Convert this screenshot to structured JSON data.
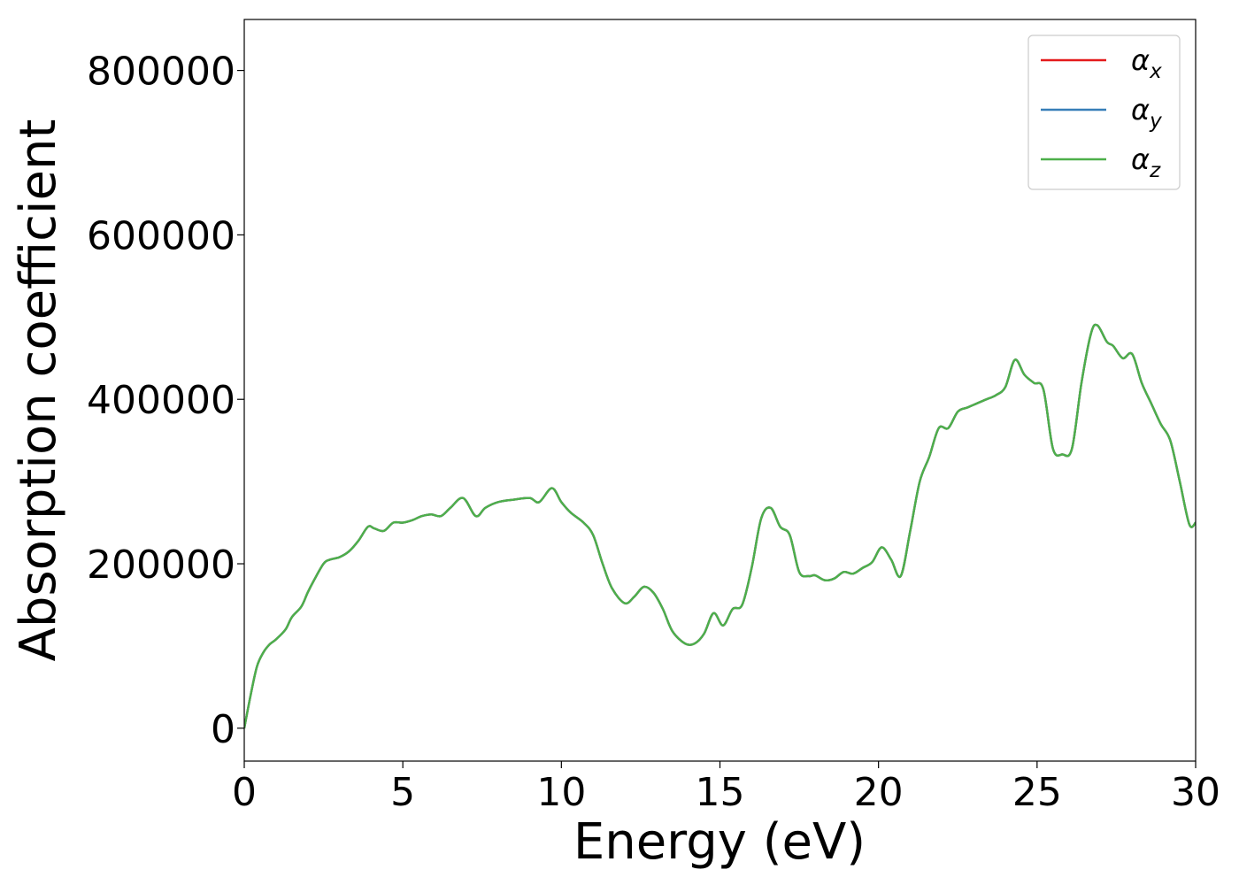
{
  "chart_data": {
    "type": "line",
    "xlabel": "Energy (eV)",
    "ylabel": "Absorption coefficient",
    "xlim": [
      0,
      30
    ],
    "ylim": [
      -40000,
      862000
    ],
    "xticks": [
      0,
      5,
      10,
      15,
      20,
      25,
      30
    ],
    "yticks": [
      0,
      200000,
      400000,
      600000,
      800000
    ],
    "grid": false,
    "legend_position": "top-right",
    "legend": [
      {
        "symbol": "α",
        "sub": "x",
        "color": "#e41a1c"
      },
      {
        "symbol": "α",
        "sub": "y",
        "color": "#377eb8"
      },
      {
        "symbol": "α",
        "sub": "z",
        "color": "#4daf4a"
      }
    ],
    "x": [
      0.0,
      0.2,
      0.4,
      0.6,
      0.8,
      1.0,
      1.3,
      1.5,
      1.8,
      2.0,
      2.2,
      2.5,
      2.7,
      3.0,
      3.3,
      3.6,
      3.9,
      4.1,
      4.4,
      4.7,
      5.0,
      5.3,
      5.6,
      5.9,
      6.2,
      6.5,
      6.9,
      7.3,
      7.6,
      8.0,
      8.5,
      9.0,
      9.3,
      9.7,
      10.0,
      10.3,
      10.7,
      11.0,
      11.3,
      11.6,
      12.0,
      12.3,
      12.6,
      12.9,
      13.2,
      13.5,
      13.9,
      14.2,
      14.5,
      14.8,
      15.1,
      15.4,
      15.7,
      16.0,
      16.3,
      16.6,
      16.9,
      17.2,
      17.5,
      17.8,
      18.0,
      18.3,
      18.6,
      18.9,
      19.2,
      19.5,
      19.8,
      20.1,
      20.4,
      20.7,
      21.0,
      21.3,
      21.6,
      21.9,
      22.2,
      22.5,
      22.8,
      23.1,
      23.4,
      23.7,
      24.0,
      24.3,
      24.6,
      24.9,
      25.2,
      25.5,
      25.8,
      26.1,
      26.4,
      26.7,
      26.9,
      27.2,
      27.4,
      27.7,
      28.0,
      28.3,
      28.6,
      28.9,
      29.2,
      29.5,
      29.8,
      30.0
    ],
    "series": [
      {
        "name": "α_x",
        "values": [
          0,
          40000,
          75000,
          92000,
          102000,
          108000,
          120000,
          135000,
          148000,
          165000,
          180000,
          200000,
          205000,
          208000,
          215000,
          228000,
          245000,
          243000,
          240000,
          250000,
          250000,
          253000,
          258000,
          260000,
          258000,
          268000,
          280000,
          258000,
          268000,
          275000,
          278000,
          280000,
          275000,
          292000,
          275000,
          262000,
          250000,
          235000,
          200000,
          170000,
          152000,
          160000,
          172000,
          165000,
          145000,
          118000,
          103000,
          103000,
          115000,
          140000,
          125000,
          145000,
          150000,
          195000,
          255000,
          268000,
          245000,
          235000,
          190000,
          185000,
          186000,
          180000,
          182000,
          190000,
          188000,
          195000,
          202000,
          220000,
          205000,
          185000,
          240000,
          300000,
          330000,
          365000,
          365000,
          385000,
          390000,
          395000,
          400000,
          405000,
          415000,
          448000,
          430000,
          420000,
          412000,
          340000,
          333000,
          340000,
          420000,
          480000,
          490000,
          470000,
          465000,
          450000,
          455000,
          420000,
          395000,
          370000,
          350000,
          300000,
          248000,
          250000
        ]
      },
      {
        "name": "α_y",
        "values": [
          0,
          40000,
          75000,
          92000,
          102000,
          108000,
          120000,
          135000,
          148000,
          165000,
          180000,
          200000,
          205000,
          208000,
          215000,
          228000,
          245000,
          243000,
          240000,
          250000,
          250000,
          253000,
          258000,
          260000,
          258000,
          268000,
          280000,
          258000,
          268000,
          275000,
          278000,
          280000,
          275000,
          292000,
          275000,
          262000,
          250000,
          235000,
          200000,
          170000,
          152000,
          160000,
          172000,
          165000,
          145000,
          118000,
          103000,
          103000,
          115000,
          140000,
          125000,
          145000,
          150000,
          195000,
          255000,
          268000,
          245000,
          235000,
          190000,
          185000,
          186000,
          180000,
          182000,
          190000,
          188000,
          195000,
          202000,
          220000,
          205000,
          185000,
          240000,
          300000,
          330000,
          365000,
          365000,
          385000,
          390000,
          395000,
          400000,
          405000,
          415000,
          448000,
          430000,
          420000,
          412000,
          340000,
          333000,
          340000,
          420000,
          480000,
          490000,
          470000,
          465000,
          450000,
          455000,
          420000,
          395000,
          370000,
          350000,
          300000,
          248000,
          250000
        ]
      },
      {
        "name": "α_z",
        "values": [
          0,
          40000,
          75000,
          92000,
          102000,
          108000,
          120000,
          135000,
          148000,
          165000,
          180000,
          200000,
          205000,
          208000,
          215000,
          228000,
          245000,
          243000,
          240000,
          250000,
          250000,
          253000,
          258000,
          260000,
          258000,
          268000,
          280000,
          258000,
          268000,
          275000,
          278000,
          280000,
          275000,
          292000,
          275000,
          262000,
          250000,
          235000,
          200000,
          170000,
          152000,
          160000,
          172000,
          165000,
          145000,
          118000,
          103000,
          103000,
          115000,
          140000,
          125000,
          145000,
          150000,
          195000,
          255000,
          268000,
          245000,
          235000,
          190000,
          185000,
          186000,
          180000,
          182000,
          190000,
          188000,
          195000,
          202000,
          220000,
          205000,
          185000,
          240000,
          300000,
          330000,
          365000,
          365000,
          385000,
          390000,
          395000,
          400000,
          405000,
          415000,
          448000,
          430000,
          420000,
          412000,
          340000,
          333000,
          340000,
          420000,
          480000,
          490000,
          470000,
          465000,
          450000,
          455000,
          420000,
          395000,
          370000,
          350000,
          300000,
          248000,
          250000
        ]
      }
    ]
  }
}
